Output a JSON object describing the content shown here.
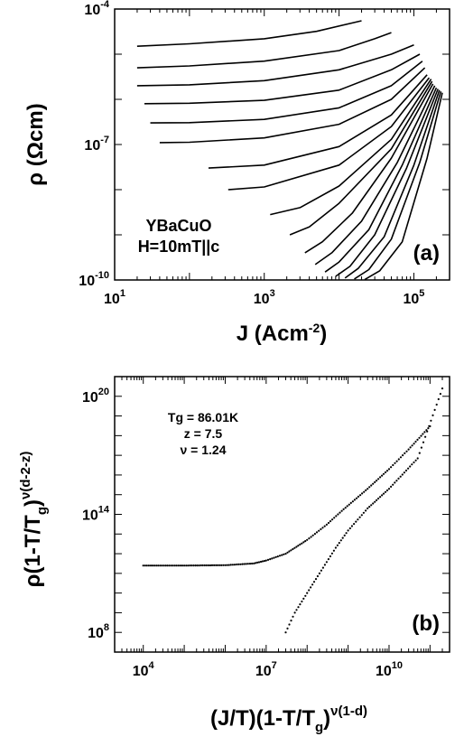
{
  "chart_data": [
    {
      "type": "line",
      "panel": "(a)",
      "title": "",
      "xlabel": "J (Acm-2)",
      "xlabel_parts": {
        "main": "J (Acm",
        "sup": "-2",
        "tail": ")"
      },
      "ylabel": "ρ (Ωcm)",
      "xscale": "log",
      "yscale": "log",
      "xlim": [
        10,
        300000
      ],
      "ylim": [
        1e-10,
        0.0001
      ],
      "xticks": [
        {
          "base": "10",
          "exp": "1",
          "value": 10
        },
        {
          "base": "10",
          "exp": "3",
          "value": 1000
        },
        {
          "base": "10",
          "exp": "5",
          "value": 100000
        }
      ],
      "yticks": [
        {
          "base": "10",
          "exp": "-4",
          "value": 0.0001
        },
        {
          "base": "10",
          "exp": "-7",
          "value": 1e-07
        },
        {
          "base": "10",
          "exp": "-10",
          "value": 1e-10
        }
      ],
      "annotation_lines": [
        "YBaCuO",
        "H=10mT||c"
      ],
      "series": [
        {
          "x": [
            20,
            100,
            1000,
            5000,
            20000
          ],
          "y": [
            1.5e-05,
            1.7e-05,
            2.2e-05,
            3.2e-05,
            5.5e-05
          ]
        },
        {
          "x": [
            20,
            100,
            1000,
            10000,
            30000,
            50000
          ],
          "y": [
            5e-06,
            5.5e-06,
            7e-06,
            1.2e-05,
            2.2e-05,
            3e-05
          ]
        },
        {
          "x": [
            20,
            100,
            1000,
            10000,
            50000,
            100000
          ],
          "y": [
            2e-06,
            2.1e-06,
            2.6e-06,
            4.5e-06,
            1e-05,
            1.6e-05
          ]
        },
        {
          "x": [
            25,
            100,
            1000,
            10000,
            50000,
            120000
          ],
          "y": [
            8e-07,
            8.2e-07,
            9.5e-07,
            1.6e-06,
            4.5e-06,
            1e-05
          ]
        },
        {
          "x": [
            30,
            100,
            1000,
            10000,
            50000,
            130000
          ],
          "y": [
            3e-07,
            3.05e-07,
            3.6e-07,
            6.5e-07,
            2e-06,
            7e-06
          ]
        },
        {
          "x": [
            40,
            100,
            1000,
            10000,
            50000,
            140000
          ],
          "y": [
            1.1e-07,
            1.12e-07,
            1.4e-07,
            2.8e-07,
            1e-06,
            5e-06
          ]
        },
        {
          "x": [
            180,
            1000,
            10000,
            50000,
            150000
          ],
          "y": [
            3e-08,
            3.5e-08,
            9e-08,
            4.5e-07,
            3.5e-06
          ]
        },
        {
          "x": [
            330,
            1000,
            10000,
            50000,
            160000
          ],
          "y": [
            1e-08,
            1.15e-08,
            3.5e-08,
            2.5e-07,
            3e-06
          ]
        },
        {
          "x": [
            1200,
            3000,
            10000,
            50000,
            170000
          ],
          "y": [
            2.8e-09,
            4e-09,
            1.2e-08,
            1.3e-07,
            2.8e-06
          ]
        },
        {
          "x": [
            2200,
            4000,
            10000,
            50000,
            175000
          ],
          "y": [
            1e-09,
            1.5e-09,
            5e-09,
            8e-08,
            2.5e-06
          ]
        },
        {
          "x": [
            3500,
            6000,
            15000,
            50000,
            180000
          ],
          "y": [
            4e-10,
            7e-10,
            3e-09,
            5e-08,
            2.2e-06
          ]
        },
        {
          "x": [
            4800,
            8000,
            20000,
            60000,
            190000
          ],
          "y": [
            2.2e-10,
            4e-10,
            2e-09,
            4e-08,
            2e-06
          ]
        },
        {
          "x": [
            6500,
            10000,
            25000,
            70000,
            200000
          ],
          "y": [
            1.5e-10,
            2.5e-10,
            1.3e-09,
            3.5e-08,
            1.8e-06
          ]
        },
        {
          "x": [
            9000,
            14000,
            30000,
            80000,
            210000
          ],
          "y": [
            1.2e-10,
            2e-10,
            1e-09,
            3e-08,
            1.7e-06
          ]
        },
        {
          "x": [
            12000,
            18000,
            40000,
            100000,
            220000
          ],
          "y": [
            1.1e-10,
            1.8e-10,
            9e-10,
            3.5e-08,
            1.6e-06
          ]
        },
        {
          "x": [
            16000,
            25000,
            50000,
            120000,
            230000
          ],
          "y": [
            1.05e-10,
            1.7e-10,
            8e-10,
            4e-08,
            1.5e-06
          ]
        },
        {
          "x": [
            22000,
            35000,
            70000,
            150000,
            240000
          ],
          "y": [
            1.02e-10,
            1.6e-10,
            7e-10,
            5e-08,
            1.4e-06
          ]
        }
      ]
    },
    {
      "type": "scatter",
      "panel": "(b)",
      "title": "",
      "xlabel": "(J/T)(1-T/Tg)ν(1-d)",
      "xlabel_parts": {
        "main": "(J/T)(1-T/T",
        "sub": "g",
        "close": ")",
        "sup": "ν(1-d)"
      },
      "ylabel": "ρ(1-T/Tg)ν(d-2-z)",
      "ylabel_parts": {
        "main": "ρ(1-T/T",
        "sub": "g",
        "close": ")",
        "sup": "ν(d-2-z)"
      },
      "xscale": "log",
      "yscale": "log",
      "xlim": [
        2000,
        300000000000
      ],
      "ylim": [
        10000000.0,
        1e+21
      ],
      "xticks": [
        {
          "base": "10",
          "exp": "4",
          "value": 10000
        },
        {
          "base": "10",
          "exp": "7",
          "value": 10000000
        },
        {
          "base": "10",
          "exp": "10",
          "value": 10000000000
        }
      ],
      "yticks": [
        {
          "base": "10",
          "exp": "8",
          "value": 100000000.0
        },
        {
          "base": "10",
          "exp": "14",
          "value": 100000000000000.0
        },
        {
          "base": "10",
          "exp": "20",
          "value": 1e+20
        }
      ],
      "annotation_lines": [
        "Tg = 86.01K",
        "z = 7.5",
        "ν = 1.24"
      ],
      "series": [
        {
          "name": "",
          "x": [
            10000,
            100000,
            1000000,
            5000000,
            10000000,
            30000000,
            100000000,
            300000000,
            700000000,
            3000000000,
            10000000000,
            30000000000,
            100000000000
          ],
          "y": [
            250000000000.0,
            250000000000.0,
            260000000000.0,
            320000000000.0,
            450000000000.0,
            1000000000000.0,
            5000000000000.0,
            30000000000000.0,
            150000000000000.0,
            2000000000000000.0,
            2e+16,
            2e+17,
            3e+18
          ]
        },
        {
          "name": "",
          "x": [
            30000000,
            50000000,
            100000000,
            200000000,
            500000000,
            1000000000,
            3000000000,
            10000000000,
            50000000000,
            200000000000
          ],
          "y": [
            100000000.0,
            1000000000.0,
            10000000000.0,
            100000000000.0,
            2000000000000.0,
            15000000000000.0,
            200000000000000.0,
            2000000000000000.0,
            7e+16,
            2.5e+20
          ]
        }
      ]
    }
  ]
}
